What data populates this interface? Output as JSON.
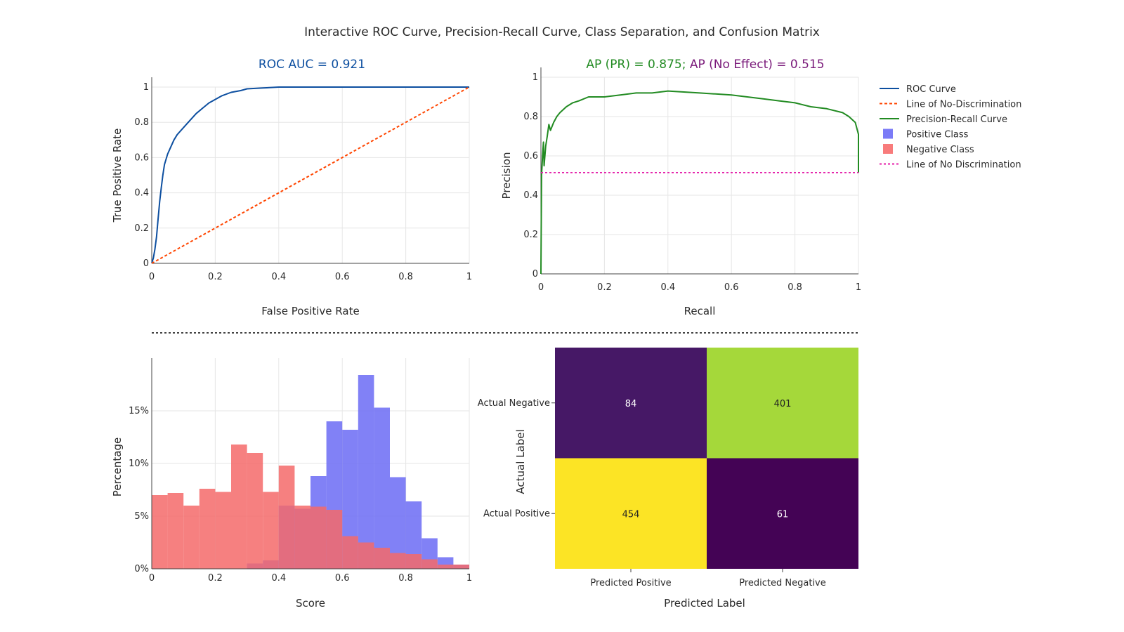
{
  "title": "Interactive ROC Curve, Precision-Recall Curve, Class Separation, and Confusion Matrix",
  "legend": {
    "items": [
      {
        "label": "ROC Curve",
        "color": "#0d4fa0",
        "kind": "line"
      },
      {
        "label": "Line of No-Discrimination",
        "color": "#ff4500",
        "kind": "dash"
      },
      {
        "label": "Precision-Recall Curve",
        "color": "#228b22",
        "kind": "line"
      },
      {
        "label": "Positive Class",
        "color": "#7b7bf7",
        "kind": "box"
      },
      {
        "label": "Negative Class",
        "color": "#f87b7b",
        "kind": "box"
      },
      {
        "label": "Line of No Discrimination",
        "color": "#e41ca8",
        "kind": "dot"
      }
    ]
  },
  "chart_data": [
    {
      "type": "line",
      "title": "ROC AUC = 0.921",
      "title_color": "#0d4fa0",
      "xlabel": "False Positive Rate",
      "ylabel": "True Positive Rate",
      "xlim": [
        0,
        1
      ],
      "ylim": [
        0,
        1
      ],
      "xticks": [
        "0",
        "0.2",
        "0.4",
        "0.6",
        "0.8",
        "1"
      ],
      "yticks": [
        "0",
        "0.2",
        "0.4",
        "0.6",
        "0.8",
        "1"
      ],
      "grid": true,
      "series": [
        {
          "name": "ROC Curve",
          "color": "#0d4fa0",
          "x": [
            0,
            0.005,
            0.01,
            0.015,
            0.02,
            0.025,
            0.03,
            0.035,
            0.04,
            0.05,
            0.06,
            0.07,
            0.08,
            0.1,
            0.12,
            0.14,
            0.16,
            0.18,
            0.2,
            0.22,
            0.25,
            0.28,
            0.3,
            0.35,
            0.4,
            0.5,
            0.6,
            0.8,
            1
          ],
          "y": [
            0,
            0.03,
            0.08,
            0.15,
            0.25,
            0.35,
            0.43,
            0.5,
            0.56,
            0.62,
            0.66,
            0.7,
            0.73,
            0.77,
            0.81,
            0.85,
            0.88,
            0.91,
            0.93,
            0.95,
            0.97,
            0.98,
            0.99,
            0.995,
            1,
            1,
            1,
            1,
            1
          ]
        },
        {
          "name": "Line of No-Discrimination",
          "color": "#ff4500",
          "dash": true,
          "x": [
            0,
            1
          ],
          "y": [
            0,
            1
          ]
        }
      ]
    },
    {
      "type": "line",
      "title_parts": [
        {
          "text": "AP (PR) = 0.875",
          "color": "#228b22"
        },
        {
          "text": "; ",
          "color": "#228b22"
        },
        {
          "text": "AP (No Effect) = 0.515",
          "color": "#7a1a7a"
        }
      ],
      "xlabel": "Recall",
      "ylabel": "Precision",
      "xlim": [
        0,
        1
      ],
      "ylim": [
        0,
        1
      ],
      "xticks": [
        "0",
        "0.2",
        "0.4",
        "0.6",
        "0.8",
        "1"
      ],
      "yticks": [
        "0",
        "0.2",
        "0.4",
        "0.6",
        "0.8",
        "1"
      ],
      "grid": true,
      "series": [
        {
          "name": "Precision-Recall Curve",
          "color": "#228b22",
          "x": [
            0,
            0.002,
            0.005,
            0.008,
            0.01,
            0.015,
            0.02,
            0.025,
            0.03,
            0.04,
            0.05,
            0.06,
            0.08,
            0.1,
            0.12,
            0.15,
            0.2,
            0.25,
            0.3,
            0.35,
            0.4,
            0.45,
            0.5,
            0.55,
            0.6,
            0.65,
            0.7,
            0.75,
            0.8,
            0.85,
            0.9,
            0.95,
            0.97,
            0.99,
            0.995,
            1,
            1
          ],
          "y": [
            0,
            0.5,
            0.6,
            0.67,
            0.55,
            0.65,
            0.7,
            0.76,
            0.73,
            0.77,
            0.8,
            0.82,
            0.85,
            0.87,
            0.88,
            0.9,
            0.9,
            0.91,
            0.92,
            0.92,
            0.93,
            0.925,
            0.92,
            0.915,
            0.91,
            0.9,
            0.89,
            0.88,
            0.87,
            0.85,
            0.84,
            0.82,
            0.8,
            0.77,
            0.74,
            0.71,
            0.515
          ]
        },
        {
          "name": "Line of No Discrimination",
          "color": "#e41ca8",
          "dot": true,
          "x": [
            0,
            1
          ],
          "y": [
            0.515,
            0.515
          ]
        }
      ]
    },
    {
      "type": "bar",
      "xlabel": "Score",
      "ylabel": "Percentage",
      "xlim": [
        0,
        1
      ],
      "ylim": [
        0,
        20
      ],
      "xticks": [
        "0",
        "0.2",
        "0.4",
        "0.6",
        "0.8",
        "1"
      ],
      "yticks": [
        "0%",
        "5%",
        "10%",
        "15%"
      ],
      "ytick_values": [
        0,
        5,
        10,
        15
      ],
      "bin_width": 0.05,
      "bin_starts": [
        0,
        0.05,
        0.1,
        0.15,
        0.2,
        0.25,
        0.3,
        0.35,
        0.4,
        0.45,
        0.5,
        0.55,
        0.6,
        0.65,
        0.7,
        0.75,
        0.8,
        0.85,
        0.9,
        0.95
      ],
      "series": [
        {
          "name": "Positive Class",
          "color": "#6b6bf5",
          "opacity": 0.85,
          "values": [
            0,
            0,
            0,
            0,
            0,
            0,
            0.5,
            0.8,
            6.0,
            5.7,
            8.8,
            14,
            13.2,
            18.4,
            15.3,
            8.7,
            6.4,
            2.9,
            1.1,
            0.4
          ]
        },
        {
          "name": "Negative Class",
          "color": "#f46a6a",
          "opacity": 0.85,
          "values": [
            7.0,
            7.2,
            6.0,
            7.6,
            7.3,
            11.8,
            11.0,
            7.3,
            9.8,
            6.0,
            5.9,
            5.6,
            3.1,
            2.5,
            2.0,
            1.5,
            1.4,
            0.9,
            0.4,
            0.4
          ]
        }
      ]
    },
    {
      "type": "heatmap",
      "xlabel": "Predicted Label",
      "ylabel": "Actual Label",
      "x_categories": [
        "Predicted Positive",
        "Predicted Negative"
      ],
      "y_categories": [
        "Actual Negative",
        "Actual Positive"
      ],
      "values": [
        [
          84,
          401
        ],
        [
          454,
          61
        ]
      ],
      "colors": [
        [
          "#461866",
          "#a5d83a"
        ],
        [
          "#fce425",
          "#440355"
        ]
      ],
      "text_color": "#ffffff"
    }
  ]
}
